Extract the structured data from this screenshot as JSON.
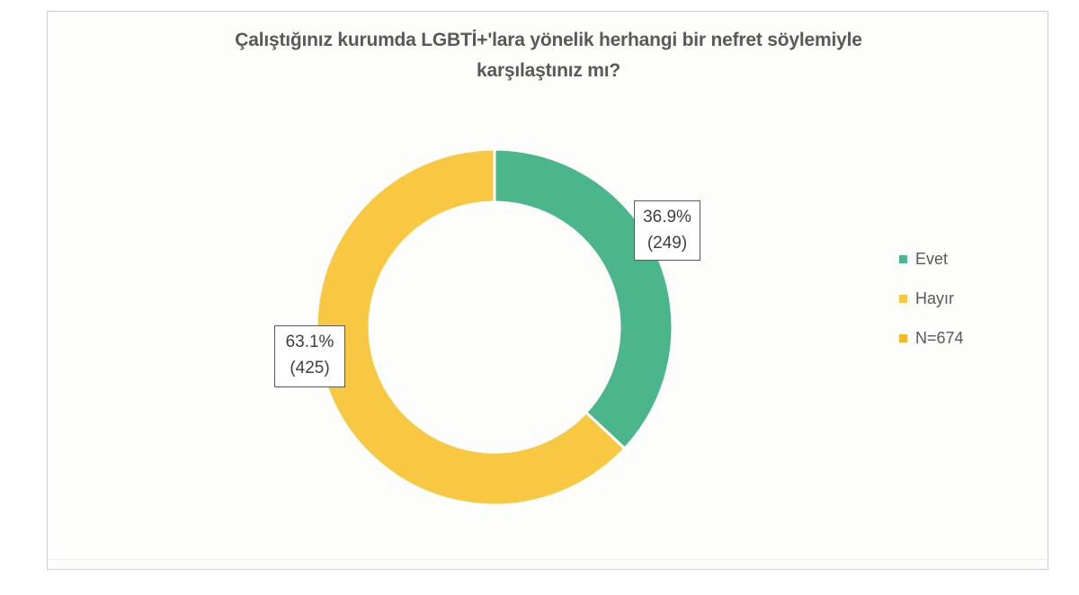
{
  "chart_data": {
    "type": "pie",
    "subtype": "donut",
    "title": "Çalıştığınız kurumda LGBTİ+'lara yönelik herhangi bir nefret söylemiyle karşılaştınız mı?",
    "categories": [
      "Evet",
      "Hayır"
    ],
    "values": [
      249,
      425
    ],
    "percentages": [
      36.9,
      63.1
    ],
    "colors": [
      "#4bb58c",
      "#f8c842"
    ],
    "data_labels": [
      "36.9%\n(249)",
      "63.1%\n(425)"
    ],
    "legend": [
      {
        "label": "Evet",
        "color": "#4bb58c"
      },
      {
        "label": "Hayır",
        "color": "#f8c842"
      },
      {
        "label": "N=674",
        "color": "#f2b929"
      }
    ],
    "legend_position": "right",
    "total_n": 674
  },
  "title": {
    "line1": "Çalıştığınız kurumda LGBTİ+'lara yönelik herhangi bir nefret söylemiyle",
    "line2": "karşılaştınız mı?"
  },
  "labels": {
    "evet": {
      "pct": "36.9%",
      "count": "(249)"
    },
    "hayir": {
      "pct": "63.1%",
      "count": "(425)"
    }
  },
  "legend": {
    "items": [
      {
        "label": "Evet",
        "color": "#4bb58c"
      },
      {
        "label": "Hayır",
        "color": "#f8c842"
      },
      {
        "label": "N=674",
        "color": "#f2b929"
      }
    ]
  }
}
